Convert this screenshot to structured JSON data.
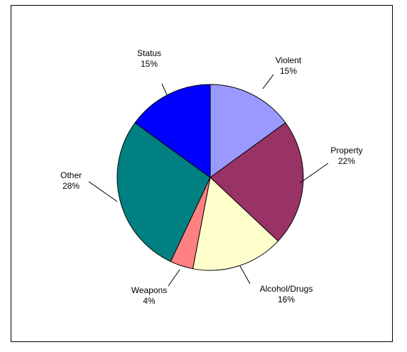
{
  "chart_data": {
    "type": "pie",
    "title": "",
    "slices": [
      {
        "label": "Violent",
        "value": 15,
        "display": "15%",
        "color": "#9999FF"
      },
      {
        "label": "Property",
        "value": 22,
        "display": "22%",
        "color": "#993366"
      },
      {
        "label": "Alcohol/Drugs",
        "value": 16,
        "display": "16%",
        "color": "#FFFFCC"
      },
      {
        "label": "Weapons",
        "value": 4,
        "display": "4%",
        "color": "#FF8080"
      },
      {
        "label": "Other",
        "value": 28,
        "display": "28%",
        "color": "#008080"
      },
      {
        "label": "Status",
        "value": 15,
        "display": "15%",
        "color": "#0000FF"
      }
    ],
    "legend": "none",
    "slice_border_color": "#000000",
    "leader_lines": true
  }
}
